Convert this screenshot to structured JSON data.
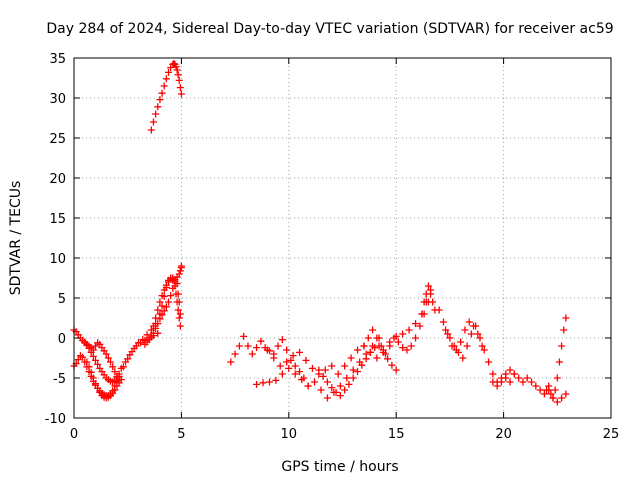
{
  "chart_data": {
    "type": "scatter",
    "title": "Day 284 of 2024, Sidereal Day-to-day VTEC variation (SDTVAR) for receiver ac59",
    "xlabel": "GPS time / hours",
    "ylabel": "SDTVAR / TECUs",
    "xlim": [
      0,
      25
    ],
    "ylim": [
      -10,
      35
    ],
    "xticks": [
      0,
      5,
      10,
      15,
      20,
      25
    ],
    "yticks": [
      -10,
      -5,
      0,
      5,
      10,
      15,
      20,
      25,
      30,
      35
    ],
    "grid": true,
    "marker": "+",
    "color": "#ff0000",
    "series": [
      {
        "name": "seg-a",
        "x": [
          0.0,
          0.1,
          0.2,
          0.3,
          0.4,
          0.5,
          0.6,
          0.7,
          0.8,
          0.9,
          1.0,
          1.1,
          1.2,
          1.3,
          1.4,
          1.5,
          1.6,
          1.7,
          1.8,
          1.9,
          2.0
        ],
        "y": [
          1.0,
          0.8,
          0.4,
          0.0,
          -0.3,
          -0.6,
          -0.9,
          -1.3,
          -1.8,
          -2.3,
          -2.8,
          -3.3,
          -3.8,
          -4.2,
          -4.6,
          -5.0,
          -5.2,
          -5.4,
          -5.5,
          -5.3,
          -5.0
        ]
      },
      {
        "name": "seg-b",
        "x": [
          0.0,
          0.1,
          0.2,
          0.3,
          0.4,
          0.5,
          0.6,
          0.7,
          0.8,
          0.9,
          1.0,
          1.1,
          1.2,
          1.3,
          1.4,
          1.5,
          1.6,
          1.7,
          1.8,
          1.9,
          2.0,
          2.1
        ],
        "y": [
          -3.5,
          -3.2,
          -2.7,
          -2.2,
          -2.4,
          -3.0,
          -3.6,
          -4.2,
          -4.8,
          -5.4,
          -5.9,
          -6.3,
          -6.6,
          -6.9,
          -7.1,
          -7.2,
          -7.2,
          -7.0,
          -6.6,
          -6.0,
          -5.4,
          -4.8
        ]
      },
      {
        "name": "seg-c",
        "x": [
          0.6,
          0.7,
          0.8,
          0.9,
          1.0,
          1.1,
          1.2,
          1.3,
          1.4,
          1.5,
          1.6,
          1.7,
          1.8,
          1.9,
          2.0,
          2.1,
          2.2
        ],
        "y": [
          -3.0,
          -3.6,
          -4.3,
          -5.0,
          -5.7,
          -6.3,
          -6.8,
          -7.2,
          -7.4,
          -7.5,
          -7.4,
          -7.2,
          -6.9,
          -6.5,
          -6.0,
          -5.6,
          -5.2
        ]
      },
      {
        "name": "seg-d",
        "x": [
          0.5,
          0.6,
          0.7,
          0.8,
          0.9,
          1.0,
          1.1,
          1.2,
          1.3,
          1.4,
          1.5,
          1.6,
          1.7,
          1.8,
          1.9,
          2.0
        ],
        "y": [
          -0.5,
          -0.8,
          -1.0,
          -1.2,
          -1.5,
          -1.0,
          -0.6,
          -0.8,
          -1.2,
          -1.6,
          -2.0,
          -2.5,
          -3.0,
          -3.6,
          -4.2,
          -4.8
        ]
      },
      {
        "name": "seg-e",
        "x": [
          2.1,
          2.3,
          2.5,
          2.7,
          2.9,
          3.1,
          3.3,
          3.5,
          3.7,
          3.9
        ],
        "y": [
          -4.5,
          -3.6,
          -2.6,
          -1.7,
          -1.0,
          -0.6,
          -0.3,
          0.0,
          0.3,
          0.6
        ]
      },
      {
        "name": "seg-f",
        "x": [
          2.2,
          2.4,
          2.6,
          2.8,
          3.0,
          3.2,
          3.4,
          3.6,
          3.8,
          4.0,
          4.1,
          4.2,
          4.3,
          4.4,
          4.5,
          4.6,
          4.7,
          4.8,
          4.85,
          4.9,
          4.95
        ],
        "y": [
          -3.8,
          -3.0,
          -2.1,
          -1.3,
          -0.6,
          -0.2,
          0.4,
          1.0,
          1.8,
          3.0,
          4.0,
          5.2,
          6.3,
          7.0,
          7.4,
          7.5,
          7.3,
          6.8,
          5.5,
          4.5,
          3.0
        ]
      },
      {
        "name": "seg-g",
        "x": [
          3.3,
          3.4,
          3.5,
          3.6,
          3.7,
          3.8,
          3.9,
          4.0,
          4.1,
          4.2,
          4.3,
          4.4,
          4.5,
          4.6,
          4.7,
          4.8,
          4.9,
          4.95,
          5.0,
          5.0
        ],
        "y": [
          -0.8,
          -0.5,
          -0.2,
          0.1,
          0.6,
          1.2,
          1.8,
          2.4,
          2.9,
          3.4,
          3.9,
          4.5,
          5.3,
          6.2,
          7.0,
          7.6,
          8.0,
          8.4,
          8.8,
          9.0
        ]
      },
      {
        "name": "seg-h",
        "x": [
          3.7,
          3.8,
          3.9,
          4.0,
          4.1,
          4.2,
          4.3,
          4.4,
          4.5,
          4.6,
          4.7,
          4.75,
          4.8,
          4.85,
          4.9,
          4.95
        ],
        "y": [
          1.5,
          2.5,
          3.5,
          4.5,
          5.3,
          6.0,
          6.6,
          7.2,
          7.5,
          7.2,
          6.5,
          5.5,
          4.5,
          3.5,
          2.5,
          1.5
        ]
      },
      {
        "name": "seg-i",
        "x": [
          3.6,
          3.7,
          3.8,
          3.9,
          4.0,
          4.1,
          4.2,
          4.3,
          4.4,
          4.5,
          4.6,
          4.65,
          4.7,
          4.75,
          4.8,
          4.85,
          4.9,
          4.95,
          5.0
        ],
        "y": [
          26.0,
          27.0,
          28.0,
          28.9,
          29.8,
          30.6,
          31.5,
          32.4,
          33.2,
          33.8,
          34.2,
          34.3,
          34.2,
          33.9,
          33.5,
          32.9,
          32.2,
          31.3,
          30.5
        ]
      },
      {
        "name": "seg-j",
        "x": [
          7.3,
          7.5,
          7.7,
          7.9,
          8.1,
          8.3,
          8.5,
          8.7,
          8.9,
          9.1,
          9.3,
          9.5,
          9.7,
          9.9,
          10.1,
          10.3,
          10.5,
          10.7,
          10.9
        ],
        "y": [
          -3.0,
          -2.0,
          -1.0,
          0.2,
          -1.0,
          -2.0,
          -1.2,
          -0.4,
          -1.2,
          -1.6,
          -2.0,
          -1.0,
          -0.2,
          -1.5,
          -2.8,
          -3.5,
          -4.2,
          -5.0,
          -6.0
        ]
      },
      {
        "name": "seg-k",
        "x": [
          8.5,
          8.8,
          9.1,
          9.4,
          9.7,
          10.0,
          10.3,
          10.6,
          10.9,
          11.2,
          11.5,
          11.8,
          12.1,
          12.4,
          12.7,
          13.0,
          13.3,
          13.6,
          13.9,
          14.2
        ],
        "y": [
          -5.8,
          -5.6,
          -5.5,
          -5.3,
          -4.5,
          -3.8,
          -4.5,
          -5.2,
          -6.0,
          -5.5,
          -6.5,
          -7.5,
          -6.8,
          -6.0,
          -5.0,
          -4.0,
          -3.0,
          -2.0,
          -1.0,
          0.0
        ]
      },
      {
        "name": "seg-l",
        "x": [
          9.0,
          9.3,
          9.6,
          9.9,
          10.2,
          10.5,
          10.8,
          11.1,
          11.4,
          11.7,
          12.0,
          12.3,
          12.6,
          12.9,
          13.2,
          13.5,
          13.8,
          14.1,
          14.4,
          14.7,
          15.0,
          15.3,
          15.6,
          15.9,
          16.2,
          16.4
        ],
        "y": [
          -1.5,
          -2.5,
          -3.5,
          -3.0,
          -2.2,
          -1.8,
          -2.8,
          -3.8,
          -4.5,
          -4.0,
          -3.5,
          -4.5,
          -3.5,
          -2.5,
          -1.5,
          -1.0,
          -1.8,
          -2.5,
          -1.5,
          -0.5,
          0.2,
          0.5,
          1.0,
          1.8,
          3.0,
          4.5
        ]
      },
      {
        "name": "seg-m",
        "x": [
          11.4,
          11.6,
          11.8,
          12.0,
          12.2,
          12.4,
          12.6,
          12.8,
          13.0,
          13.2,
          13.4,
          13.6,
          13.8,
          14.0,
          14.2,
          14.4,
          14.6,
          14.8,
          15.0
        ],
        "y": [
          -4.0,
          -4.8,
          -5.5,
          -6.2,
          -6.8,
          -7.2,
          -6.5,
          -5.8,
          -5.0,
          -4.2,
          -3.4,
          -2.6,
          -1.8,
          -1.2,
          -1.0,
          -1.8,
          -2.6,
          -3.4,
          -4.0
        ]
      },
      {
        "name": "seg-n",
        "x": [
          13.5,
          13.7,
          13.9,
          14.1,
          14.3,
          14.5,
          14.7,
          14.9,
          15.1,
          15.3,
          15.5,
          15.7,
          15.9,
          16.1,
          16.3,
          16.5,
          16.6
        ],
        "y": [
          -1.0,
          0.0,
          1.0,
          0.0,
          -1.0,
          -2.0,
          -1.0,
          0.0,
          -0.5,
          -1.2,
          -1.5,
          -1.0,
          0.0,
          1.5,
          3.0,
          4.5,
          6.0
        ]
      },
      {
        "name": "seg-o",
        "x": [
          16.2,
          16.3,
          16.4,
          16.5,
          16.6,
          16.7,
          16.8
        ],
        "y": [
          3.0,
          4.5,
          5.5,
          6.5,
          5.5,
          4.5,
          3.5
        ]
      },
      {
        "name": "seg-p",
        "x": [
          17.0,
          17.2,
          17.4,
          17.6,
          17.8,
          18.0,
          18.2,
          18.4,
          18.6,
          18.8,
          19.0
        ],
        "y": [
          3.5,
          2.0,
          0.5,
          -1.0,
          -1.5,
          -0.5,
          1.0,
          2.0,
          1.5,
          0.5,
          -1.0
        ]
      },
      {
        "name": "seg-q",
        "x": [
          17.3,
          17.5,
          17.7,
          17.9,
          18.1,
          18.3,
          18.5,
          18.7,
          18.9,
          19.1,
          19.3,
          19.5,
          19.7,
          19.9,
          20.1,
          20.3,
          20.5
        ],
        "y": [
          1.0,
          0.0,
          -1.0,
          -1.8,
          -2.5,
          -1.0,
          0.5,
          1.5,
          0.0,
          -1.5,
          -3.0,
          -4.5,
          -5.5,
          -5.0,
          -4.5,
          -4.0,
          -4.5
        ]
      },
      {
        "name": "seg-r",
        "x": [
          19.5,
          19.7,
          19.9,
          20.1,
          20.3,
          20.5,
          20.7,
          20.9,
          21.1,
          21.3,
          21.5,
          21.7,
          21.9,
          22.1,
          22.3,
          22.5,
          22.7,
          22.9
        ],
        "y": [
          -5.5,
          -6.0,
          -5.5,
          -5.0,
          -5.5,
          -4.5,
          -5.0,
          -5.5,
          -5.0,
          -5.5,
          -6.0,
          -6.5,
          -7.0,
          -6.5,
          -7.5,
          -8.0,
          -7.5,
          -7.0
        ]
      },
      {
        "name": "seg-s",
        "x": [
          22.0,
          22.1,
          22.2,
          22.3,
          22.4,
          22.5,
          22.6,
          22.7,
          22.8,
          22.9
        ],
        "y": [
          -6.5,
          -6.0,
          -7.0,
          -7.5,
          -6.5,
          -5.0,
          -3.0,
          -1.0,
          1.0,
          2.5
        ]
      }
    ]
  }
}
